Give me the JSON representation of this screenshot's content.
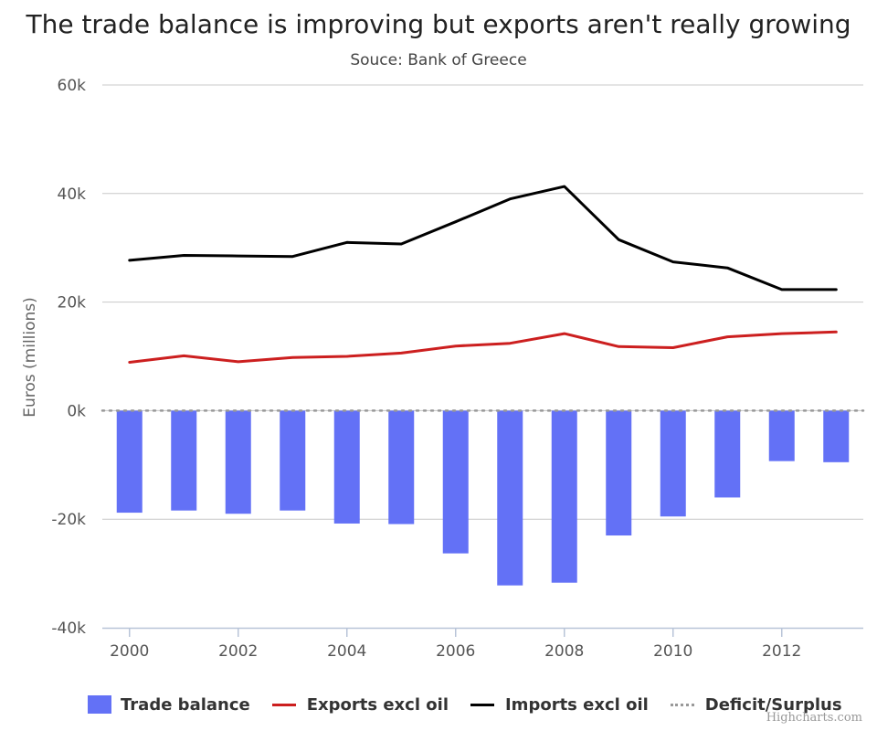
{
  "chart_data": {
    "type": "bar",
    "title": "The trade balance is improving but exports aren't really growing",
    "subtitle": "Souce: Bank of Greece",
    "xlabel": "",
    "ylabel": "Euros (millions)",
    "ylim": [
      -40000,
      60000
    ],
    "y_ticks": [
      -40000,
      -20000,
      0,
      20000,
      40000,
      60000
    ],
    "y_tick_labels": [
      "-40k",
      "-20k",
      "0k",
      "20k",
      "40k",
      "60k"
    ],
    "x_tick_labels": [
      "2000",
      "2002",
      "2004",
      "2006",
      "2008",
      "2010",
      "2012"
    ],
    "x_tick_values": [
      2000,
      2002,
      2004,
      2006,
      2008,
      2010,
      2012
    ],
    "categories": [
      2000,
      2001,
      2002,
      2003,
      2004,
      2005,
      2006,
      2007,
      2008,
      2009,
      2010,
      2011,
      2012,
      2013
    ],
    "series": [
      {
        "name": "Trade balance",
        "kind": "bar",
        "color": "#6371f6",
        "values": [
          -18800,
          -18400,
          -19000,
          -18400,
          -20800,
          -20900,
          -26300,
          -32200,
          -31700,
          -23000,
          -19500,
          -16000,
          -9300,
          -9500
        ]
      },
      {
        "name": "Exports excl oil",
        "kind": "line",
        "color": "#cc1f1f",
        "values": [
          8900,
          10100,
          9000,
          9800,
          10000,
          10600,
          11900,
          12400,
          14200,
          11800,
          11600,
          13600,
          14200,
          14500
        ]
      },
      {
        "name": "Imports excl oil",
        "kind": "line",
        "color": "#000000",
        "values": [
          27700,
          28600,
          28500,
          28400,
          31000,
          30700,
          34800,
          39000,
          41300,
          31500,
          27400,
          26300,
          22300,
          22300
        ]
      },
      {
        "name": "Deficit/Surplus",
        "kind": "dotted-line",
        "color": "#999999",
        "values": [
          0,
          0,
          0,
          0,
          0,
          0,
          0,
          0,
          0,
          0,
          0,
          0,
          0,
          0
        ]
      }
    ],
    "grid": true,
    "legend_position": "bottom"
  },
  "credits": "Highcharts.com"
}
